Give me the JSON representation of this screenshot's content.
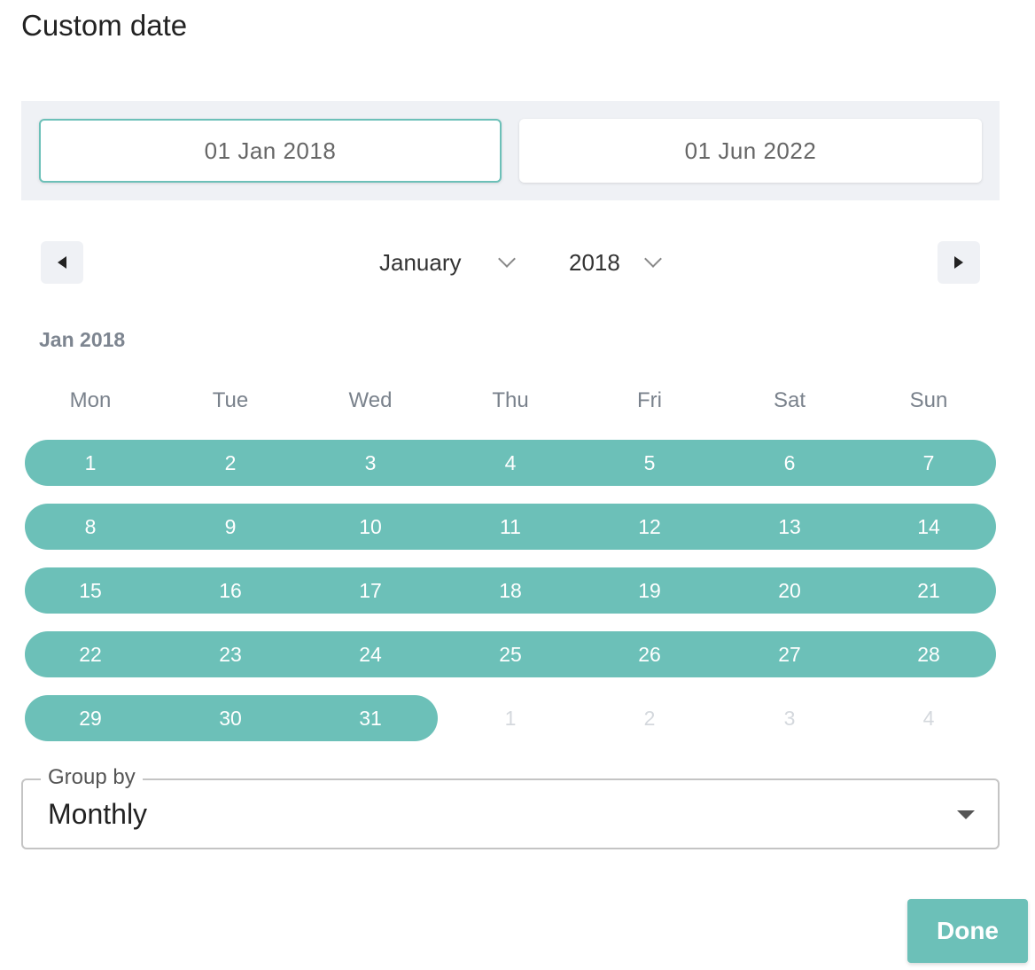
{
  "title": "Custom date",
  "range": {
    "start_date": "01 Jan 2018",
    "end_date": "01 Jun 2022"
  },
  "nav": {
    "month": "January",
    "year": "2018"
  },
  "calendar": {
    "month_label": "Jan 2018",
    "weekdays": [
      "Mon",
      "Tue",
      "Wed",
      "Thu",
      "Fri",
      "Sat",
      "Sun"
    ],
    "weeks": [
      [
        {
          "d": "1",
          "in": true
        },
        {
          "d": "2",
          "in": true
        },
        {
          "d": "3",
          "in": true
        },
        {
          "d": "4",
          "in": true
        },
        {
          "d": "5",
          "in": true
        },
        {
          "d": "6",
          "in": true
        },
        {
          "d": "7",
          "in": true
        }
      ],
      [
        {
          "d": "8",
          "in": true
        },
        {
          "d": "9",
          "in": true
        },
        {
          "d": "10",
          "in": true
        },
        {
          "d": "11",
          "in": true
        },
        {
          "d": "12",
          "in": true
        },
        {
          "d": "13",
          "in": true
        },
        {
          "d": "14",
          "in": true
        }
      ],
      [
        {
          "d": "15",
          "in": true
        },
        {
          "d": "16",
          "in": true
        },
        {
          "d": "17",
          "in": true
        },
        {
          "d": "18",
          "in": true
        },
        {
          "d": "19",
          "in": true
        },
        {
          "d": "20",
          "in": true
        },
        {
          "d": "21",
          "in": true
        }
      ],
      [
        {
          "d": "22",
          "in": true
        },
        {
          "d": "23",
          "in": true
        },
        {
          "d": "24",
          "in": true
        },
        {
          "d": "25",
          "in": true
        },
        {
          "d": "26",
          "in": true
        },
        {
          "d": "27",
          "in": true
        },
        {
          "d": "28",
          "in": true
        }
      ],
      [
        {
          "d": "29",
          "in": true
        },
        {
          "d": "30",
          "in": true
        },
        {
          "d": "31",
          "in": true
        },
        {
          "d": "1",
          "in": false
        },
        {
          "d": "2",
          "in": false
        },
        {
          "d": "3",
          "in": false
        },
        {
          "d": "4",
          "in": false
        }
      ]
    ]
  },
  "group_by": {
    "label": "Group by",
    "value": "Monthly"
  },
  "done_label": "Done",
  "colors": {
    "accent": "#6cc0b8",
    "panel": "#eff1f5"
  },
  "icons": {
    "prev": "triangle-left-icon",
    "next": "triangle-right-icon",
    "dropdown": "chevron-down-icon",
    "select_caret": "caret-down-icon"
  }
}
